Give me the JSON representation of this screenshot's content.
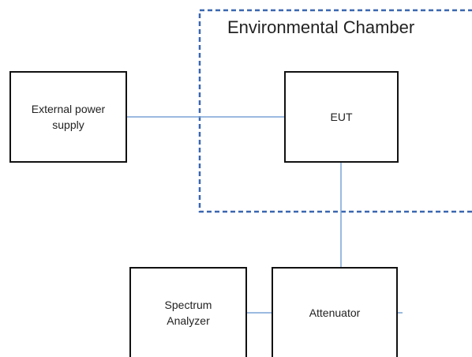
{
  "title": "Environmental Chamber",
  "nodes": [
    {
      "label": "External power supply"
    },
    {
      "label": "EUT"
    },
    {
      "label": "Spectrum Analyzer"
    },
    {
      "label": "Attenuator"
    }
  ]
}
